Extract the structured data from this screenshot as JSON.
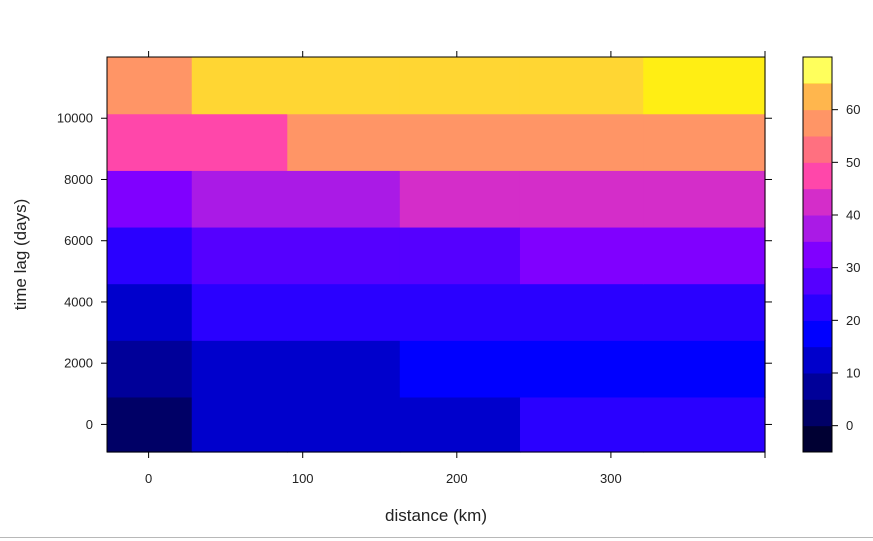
{
  "chart_data": {
    "type": "heatmap",
    "xlabel": "distance (km)",
    "ylabel": "time lag (days)",
    "x_ticks": [
      0,
      100,
      200,
      300
    ],
    "y_ticks": [
      0,
      2000,
      4000,
      6000,
      8000,
      10000
    ],
    "x_edges": [
      -27,
      28,
      90,
      163,
      241,
      321,
      400
    ],
    "y_edges": [
      -900,
      900,
      2750,
      4600,
      6450,
      8300,
      10150,
      12000
    ],
    "values": [
      [
        -3,
        5,
        5,
        5,
        17,
        17
      ],
      [
        3,
        6,
        6,
        13,
        13,
        13
      ],
      [
        7,
        15,
        17,
        17,
        17,
        17
      ],
      [
        15,
        20,
        20,
        20,
        26,
        26
      ],
      [
        26,
        32,
        32,
        38,
        38,
        38
      ],
      [
        42,
        44,
        50,
        50,
        50,
        50
      ],
      [
        53,
        61,
        61,
        61,
        61,
        65
      ]
    ],
    "colorbar": {
      "ticks": [
        0,
        10,
        20,
        30,
        40,
        50,
        60
      ],
      "levels": [
        -5,
        0,
        5,
        10,
        15,
        20,
        25,
        30,
        35,
        40,
        45,
        50,
        55,
        60,
        65,
        70
      ],
      "colors": [
        "#000033",
        "#000066",
        "#000099",
        "#0000CC",
        "#0000FF",
        "#2A00FF",
        "#5500FF",
        "#8000FF",
        "#AA1AE6",
        "#D42DC9",
        "#FF47AA",
        "#FF7080",
        "#FF9566",
        "#FFB64D",
        "#FFD633",
        "#FFEE14",
        "#FFFF5C"
      ]
    }
  }
}
